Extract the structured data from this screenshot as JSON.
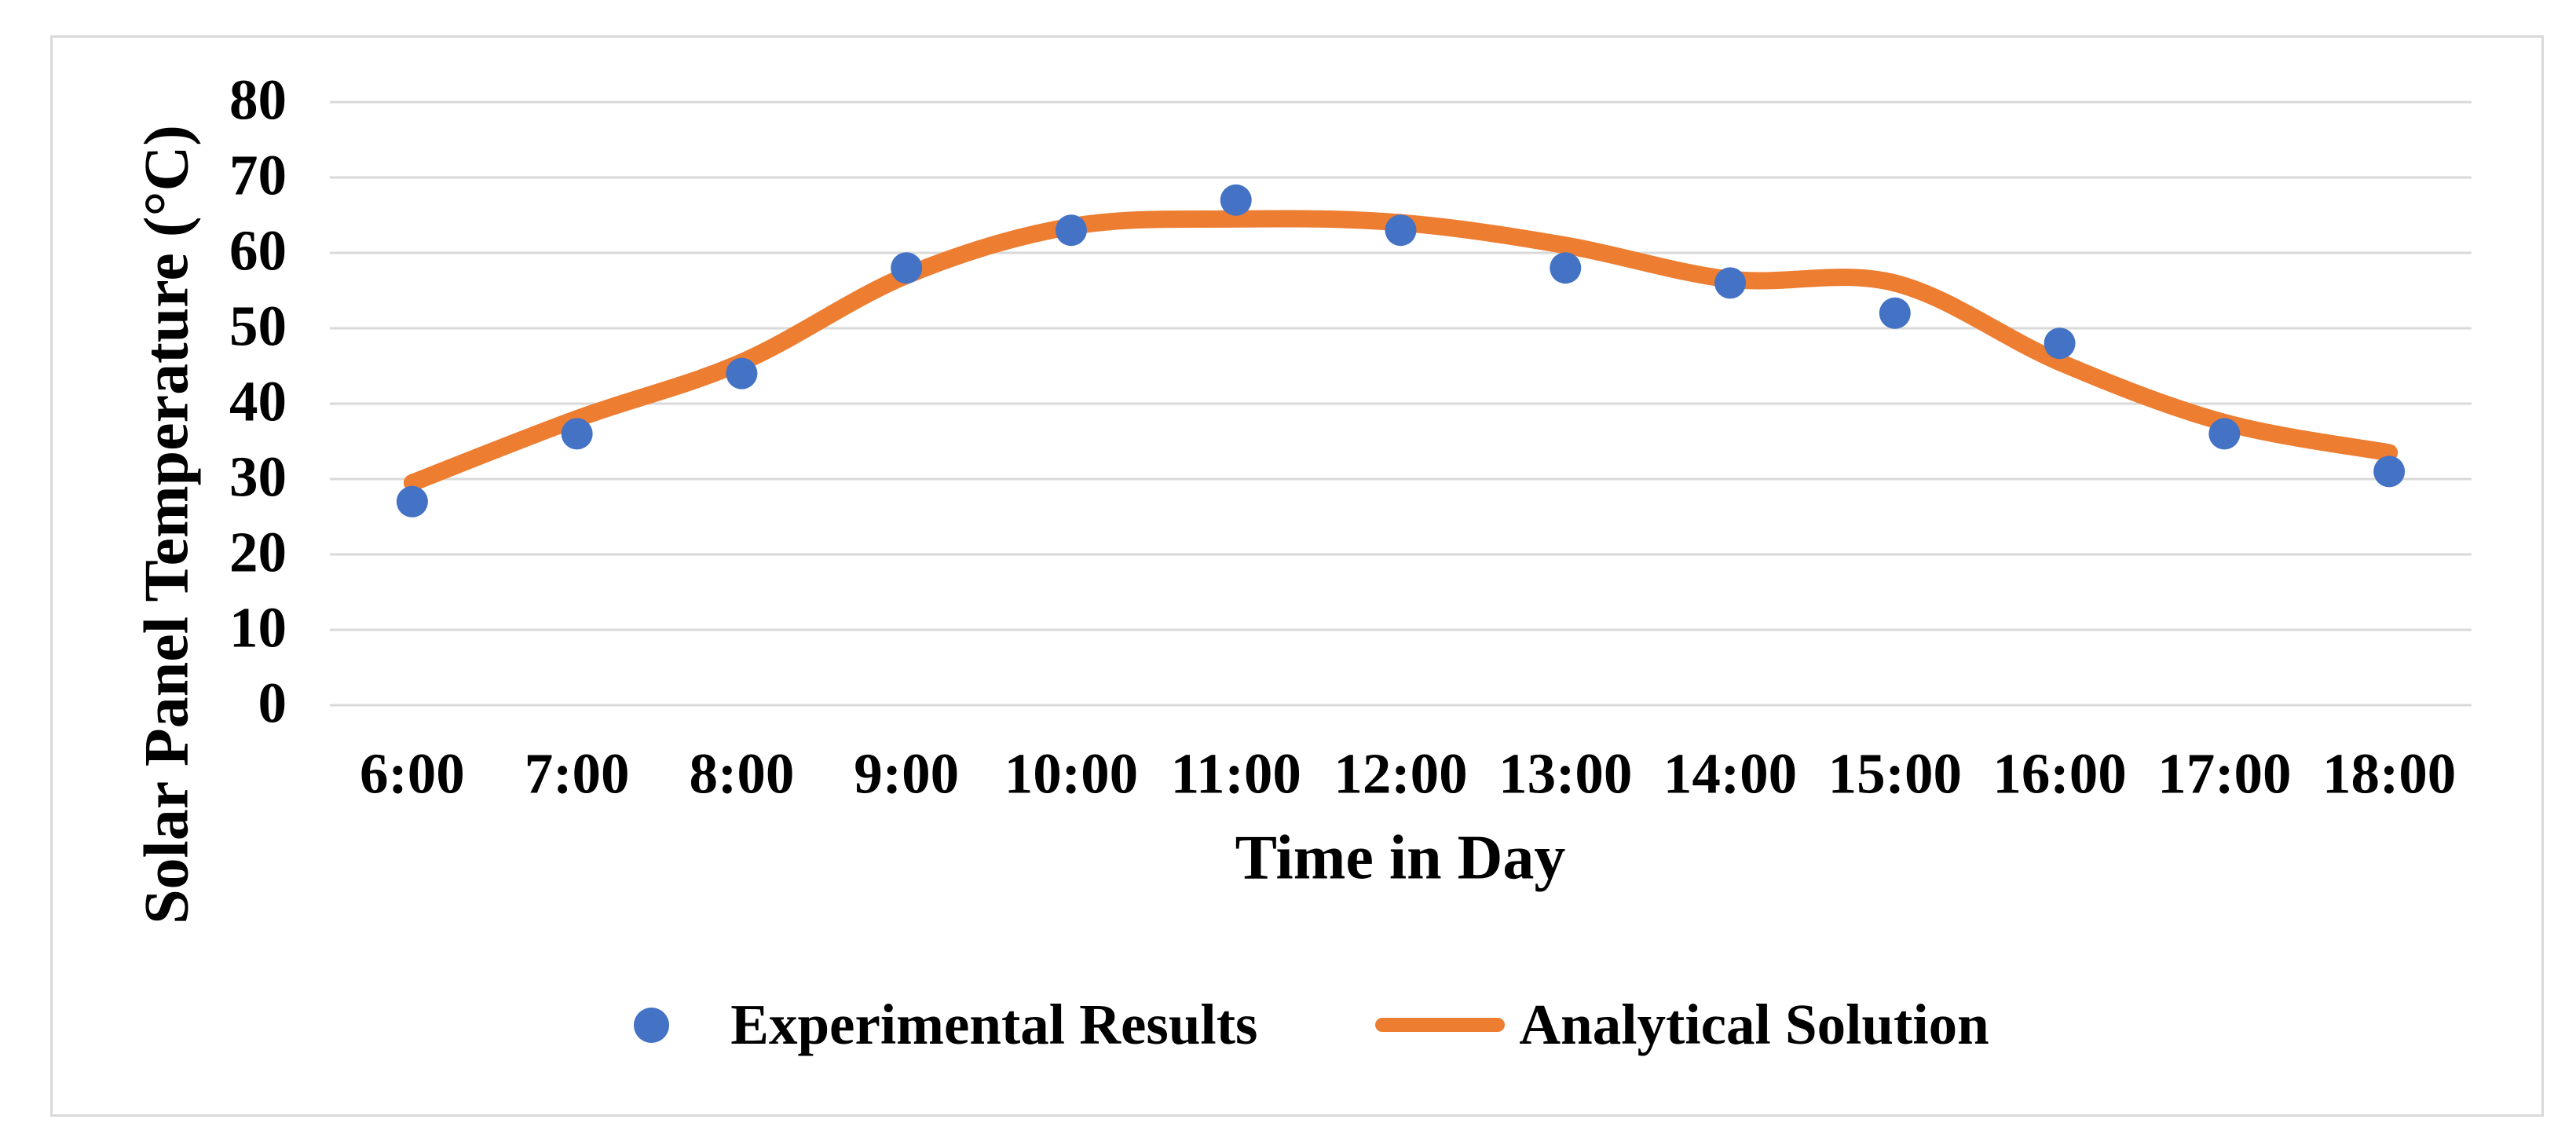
{
  "chart_data": {
    "type": "line",
    "title": "",
    "xlabel": "Time in Day",
    "ylabel": "Solar Panel Temperature (°C)",
    "categories": [
      "6:00",
      "7:00",
      "8:00",
      "9:00",
      "10:00",
      "11:00",
      "12:00",
      "13:00",
      "14:00",
      "15:00",
      "16:00",
      "17:00",
      "18:00"
    ],
    "series": [
      {
        "name": "Experimental Results",
        "type": "scatter",
        "marker": "circle",
        "color": "#4472C4",
        "values": [
          27,
          36,
          44,
          58,
          63,
          67,
          63,
          58,
          56,
          52,
          48,
          36,
          31
        ]
      },
      {
        "name": "Analytical Solution",
        "type": "smooth-line",
        "color": "#ED7D31",
        "values": [
          29.5,
          38,
          45.5,
          57,
          63.5,
          64.5,
          64,
          61,
          56.5,
          56,
          45.5,
          37.5,
          33.5
        ]
      }
    ],
    "ylim": [
      0,
      80
    ],
    "y_ticks": [
      0,
      10,
      20,
      30,
      40,
      50,
      60,
      70,
      80
    ],
    "grid": "horizontal",
    "legend_position": "bottom"
  },
  "colors": {
    "gridline": "#D9D9D9",
    "border": "#D9D9D9",
    "text": "#000000",
    "background": "#FFFFFF",
    "experimental": "#4472C4",
    "analytical": "#ED7D31"
  }
}
